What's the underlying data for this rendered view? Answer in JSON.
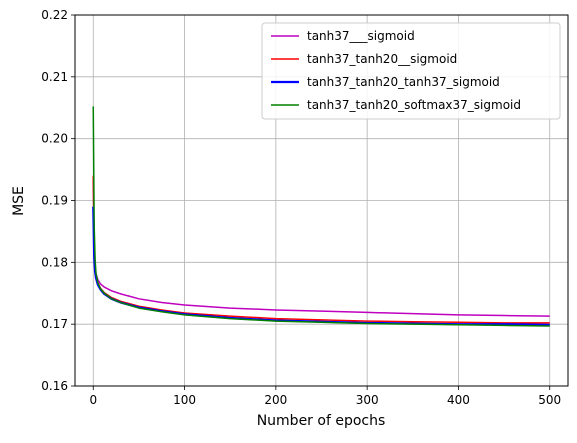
{
  "chart_data": {
    "type": "line",
    "title": "",
    "xlabel": "Number of epochs",
    "ylabel": "MSE",
    "xlim": [
      -20,
      520
    ],
    "ylim": [
      0.16,
      0.22
    ],
    "xticks": [
      0,
      100,
      200,
      300,
      400,
      500
    ],
    "yticks": [
      0.16,
      0.17,
      0.18,
      0.19,
      0.2,
      0.21,
      0.22
    ],
    "ytick_labels": [
      "0.16",
      "0.17",
      "0.18",
      "0.19",
      "0.20",
      "0.21",
      "0.22"
    ],
    "grid": true,
    "legend_position": "top-right",
    "series": [
      {
        "name": "tanh37___sigmoid",
        "color": "#bf00bf",
        "emphasis": false,
        "x": [
          0,
          1,
          2,
          3,
          5,
          8,
          12,
          20,
          30,
          50,
          75,
          100,
          150,
          200,
          250,
          300,
          350,
          400,
          450,
          500
        ],
        "values": [
          0.1935,
          0.1825,
          0.1795,
          0.1782,
          0.1772,
          0.1765,
          0.176,
          0.1754,
          0.1749,
          0.1741,
          0.1735,
          0.1731,
          0.1726,
          0.1723,
          0.1721,
          0.1719,
          0.1717,
          0.1715,
          0.1714,
          0.1713
        ]
      },
      {
        "name": "tanh37_tanh20__sigmoid",
        "color": "#ff0000",
        "emphasis": false,
        "x": [
          0,
          1,
          2,
          3,
          5,
          8,
          12,
          20,
          30,
          50,
          75,
          100,
          150,
          200,
          250,
          300,
          350,
          400,
          450,
          500
        ],
        "values": [
          0.194,
          0.182,
          0.179,
          0.1778,
          0.1767,
          0.1758,
          0.1751,
          0.1743,
          0.1737,
          0.1729,
          0.1723,
          0.1718,
          0.1713,
          0.1709,
          0.1707,
          0.1705,
          0.1704,
          0.1703,
          0.1702,
          0.1702
        ]
      },
      {
        "name": "tanh37_tanh20_tanh37_sigmoid",
        "color": "#0000ff",
        "emphasis": true,
        "x": [
          0,
          1,
          2,
          3,
          5,
          8,
          12,
          20,
          30,
          50,
          75,
          100,
          150,
          200,
          250,
          300,
          350,
          400,
          450,
          500
        ],
        "values": [
          0.189,
          0.181,
          0.1785,
          0.1775,
          0.1764,
          0.1756,
          0.1749,
          0.1741,
          0.1735,
          0.1727,
          0.1721,
          0.1716,
          0.171,
          0.1706,
          0.1704,
          0.1702,
          0.1701,
          0.17,
          0.17,
          0.1699
        ]
      },
      {
        "name": "tanh37_tanh20_softmax37_sigmoid",
        "color": "#008000",
        "emphasis": false,
        "x": [
          0,
          1,
          2,
          3,
          5,
          8,
          12,
          20,
          30,
          50,
          75,
          100,
          150,
          200,
          250,
          300,
          350,
          400,
          450,
          500
        ],
        "values": [
          0.2052,
          0.186,
          0.1805,
          0.1782,
          0.1767,
          0.1757,
          0.175,
          0.1741,
          0.1735,
          0.1726,
          0.172,
          0.1715,
          0.1709,
          0.1705,
          0.1703,
          0.1701,
          0.17,
          0.1699,
          0.1698,
          0.1697
        ]
      }
    ]
  }
}
